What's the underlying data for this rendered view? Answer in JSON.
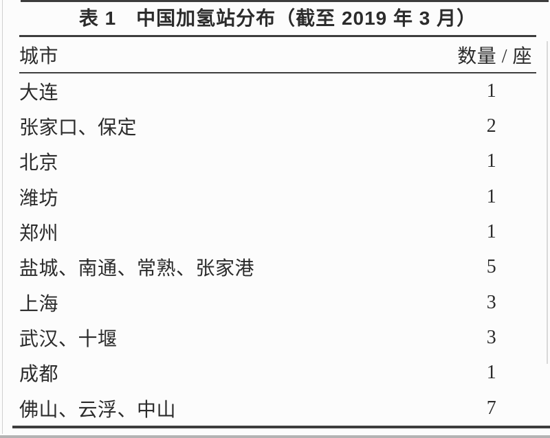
{
  "colors": {
    "bg": "#fcfcfc",
    "text": "#2b2b2b",
    "rule": "#3d3d3d",
    "edge": "#cfcfcf",
    "strip": "#b3b3b3"
  },
  "table": {
    "title": "表 1　中国加氢站分布（截至 2019 年 3 月）",
    "columns": {
      "city": "城市",
      "count": "数量 / 座"
    },
    "rows": [
      {
        "city": "大连",
        "count": "1"
      },
      {
        "city": "张家口、保定",
        "count": "2"
      },
      {
        "city": "北京",
        "count": "1"
      },
      {
        "city": "潍坊",
        "count": "1"
      },
      {
        "city": "郑州",
        "count": "1"
      },
      {
        "city": "盐城、南通、常熟、张家港",
        "count": "5"
      },
      {
        "city": "上海",
        "count": "3"
      },
      {
        "city": "武汉、十堰",
        "count": "3"
      },
      {
        "city": "成都",
        "count": "1"
      },
      {
        "city": "佛山、云浮、中山",
        "count": "7"
      }
    ]
  }
}
